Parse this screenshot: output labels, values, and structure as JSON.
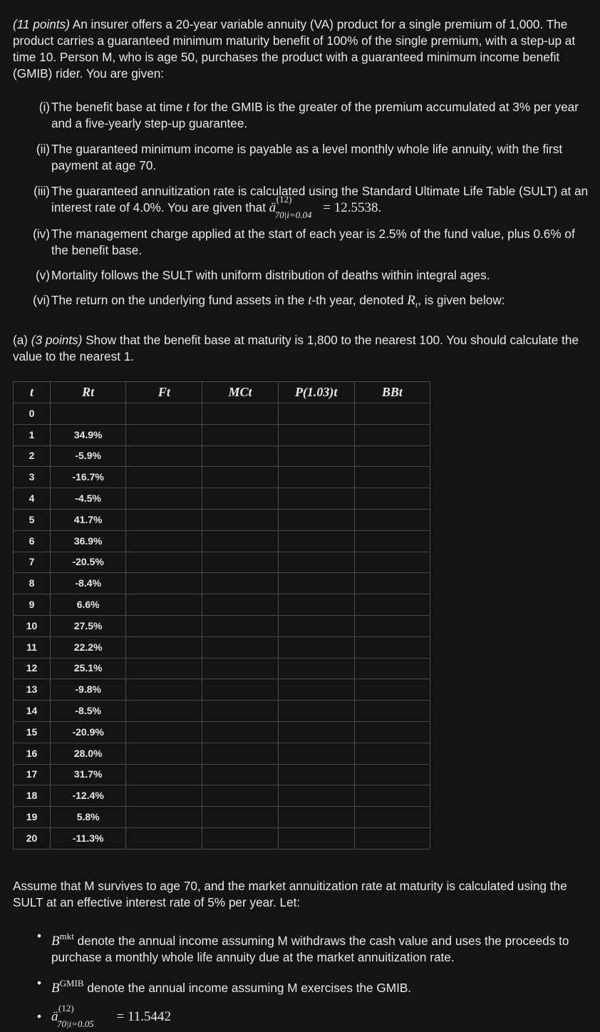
{
  "intro": {
    "points": "(11 points)",
    "text": " An insurer offers a 20-year variable annuity (VA) product for a single premium of 1,000. The product carries a guaranteed minimum maturity benefit of 100% of the single premium, with a step-up at time 10. Person M, who is age 50, purchases the product with a guaranteed minimum income benefit (GMIB) rider. You are given:"
  },
  "givens": [
    {
      "num": "(i)",
      "a": "The benefit base at time ",
      "var": "t",
      "b": " for the GMIB is the greater of the premium accumulated at 3% per year and a five-yearly step-up guarantee."
    },
    {
      "num": "(ii)",
      "a": "The guaranteed minimum income is payable as a level monthly whole life annuity, with the first payment at age 70."
    },
    {
      "num": "(iii)",
      "a": "The guaranteed annuitization rate is calculated using the Standard Ultimate Life Table (SULT) at an interest rate of 4.0%. You are given that ",
      "ann_sup": "(12)",
      "ann_sub": "70|i=0.04",
      "ann_val": "= 12.5538."
    },
    {
      "num": "(iv)",
      "a": "The management charge applied at the start of each year is 2.5% of the fund value, plus 0.6% of the benefit base."
    },
    {
      "num": "(v)",
      "a": "Mortality follows the SULT with uniform distribution of deaths within integral ages."
    },
    {
      "num": "(vi)",
      "a": "The return on the underlying fund assets in the ",
      "var": "t",
      "b": "-th year, denoted ",
      "var2": "R",
      "var2sub": "t",
      "c": ", is given below:"
    }
  ],
  "part_a": {
    "label": "(a) ",
    "points": "(3 points)",
    "text": " Show that the benefit base at maturity is 1,800 to the nearest 100. You should calculate the value to the nearest 1."
  },
  "table": {
    "headers": [
      "t",
      "Rt",
      "Ft",
      "MCt",
      "P(1.03)t",
      "BBt"
    ],
    "rows": [
      {
        "t": "0",
        "r": ""
      },
      {
        "t": "1",
        "r": "34.9%"
      },
      {
        "t": "2",
        "r": "-5.9%"
      },
      {
        "t": "3",
        "r": "-16.7%"
      },
      {
        "t": "4",
        "r": "-4.5%"
      },
      {
        "t": "5",
        "r": "41.7%"
      },
      {
        "t": "6",
        "r": "36.9%"
      },
      {
        "t": "7",
        "r": "-20.5%"
      },
      {
        "t": "8",
        "r": "-8.4%"
      },
      {
        "t": "9",
        "r": "6.6%"
      },
      {
        "t": "10",
        "r": "27.5%"
      },
      {
        "t": "11",
        "r": "22.2%"
      },
      {
        "t": "12",
        "r": "25.1%"
      },
      {
        "t": "13",
        "r": "-9.8%"
      },
      {
        "t": "14",
        "r": "-8.5%"
      },
      {
        "t": "15",
        "r": "-20.9%"
      },
      {
        "t": "16",
        "r": "28.0%"
      },
      {
        "t": "17",
        "r": "31.7%"
      },
      {
        "t": "18",
        "r": "-12.4%"
      },
      {
        "t": "19",
        "r": "5.8%"
      },
      {
        "t": "20",
        "r": "-11.3%"
      }
    ]
  },
  "assume": "Assume that M survives to age 70, and the market annuitization rate at maturity is calculated using the SULT at an effective interest rate of 5% per year. Let:",
  "bullets": [
    {
      "sym": "B",
      "sup": "mkt",
      "text": " denote the annual income assuming M withdraws the cash value and uses the proceeds to purchase a monthly whole life annuity due at the market annuitization rate."
    },
    {
      "sym": "B",
      "sup": "GMIB",
      "text": " denote the annual income assuming M exercises the GMIB."
    },
    {
      "ann_sup": "(12)",
      "ann_sub": "70|i=0.05",
      "ann_val": "= 11.5442"
    }
  ]
}
